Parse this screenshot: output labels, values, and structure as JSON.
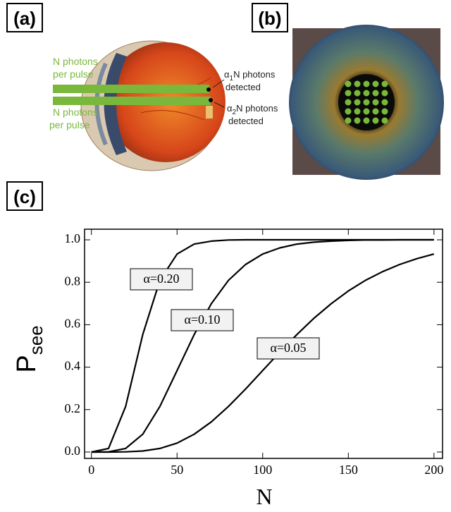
{
  "panels": {
    "a": {
      "label": "(a)",
      "beam_labels": [
        [
          "N photons",
          "per pulse"
        ],
        [
          "N photons",
          "per pulse"
        ]
      ],
      "detect_labels": [
        {
          "symbol": "α",
          "sub": "1",
          "text": "N photons",
          "line2": "detected"
        },
        {
          "symbol": "α",
          "sub": "2",
          "text": "N photons",
          "line2": "detected"
        }
      ]
    },
    "b": {
      "label": "(b)"
    },
    "c": {
      "label": "(c)"
    }
  },
  "chart_data": {
    "type": "line",
    "x_label": "N",
    "y_label": "P",
    "y_label_sub": "see",
    "x": [
      0,
      10,
      20,
      30,
      40,
      50,
      60,
      70,
      80,
      90,
      100,
      110,
      120,
      130,
      140,
      150,
      160,
      170,
      180,
      190,
      200
    ],
    "series": [
      {
        "name": "α=0.20",
        "color": "#000000",
        "values": [
          0,
          0.017,
          0.215,
          0.554,
          0.809,
          0.933,
          0.98,
          0.994,
          0.999,
          1,
          1,
          1,
          1,
          1,
          1,
          1,
          1,
          1,
          1,
          1,
          1
        ]
      },
      {
        "name": "α=0.10",
        "color": "#000000",
        "values": [
          0,
          0.001,
          0.017,
          0.084,
          0.215,
          0.384,
          0.554,
          0.699,
          0.809,
          0.884,
          0.933,
          0.962,
          0.98,
          0.989,
          0.994,
          0.997,
          0.999,
          0.999,
          1,
          1,
          1
        ]
      },
      {
        "name": "α=0.05",
        "color": "#000000",
        "values": [
          0,
          0,
          0.001,
          0.005,
          0.017,
          0.042,
          0.084,
          0.142,
          0.215,
          0.297,
          0.384,
          0.471,
          0.554,
          0.631,
          0.699,
          0.759,
          0.809,
          0.85,
          0.884,
          0.911,
          0.933
        ]
      }
    ],
    "xlim": [
      -4,
      205
    ],
    "ylim": [
      -0.03,
      1.05
    ],
    "xticks": [
      0,
      50,
      100,
      150,
      200
    ],
    "yticks": [
      {
        "value": 0,
        "label": "0.0"
      },
      0.2,
      0.4,
      0.6,
      0.8,
      {
        "value": 1,
        "label": "1.0"
      }
    ]
  }
}
